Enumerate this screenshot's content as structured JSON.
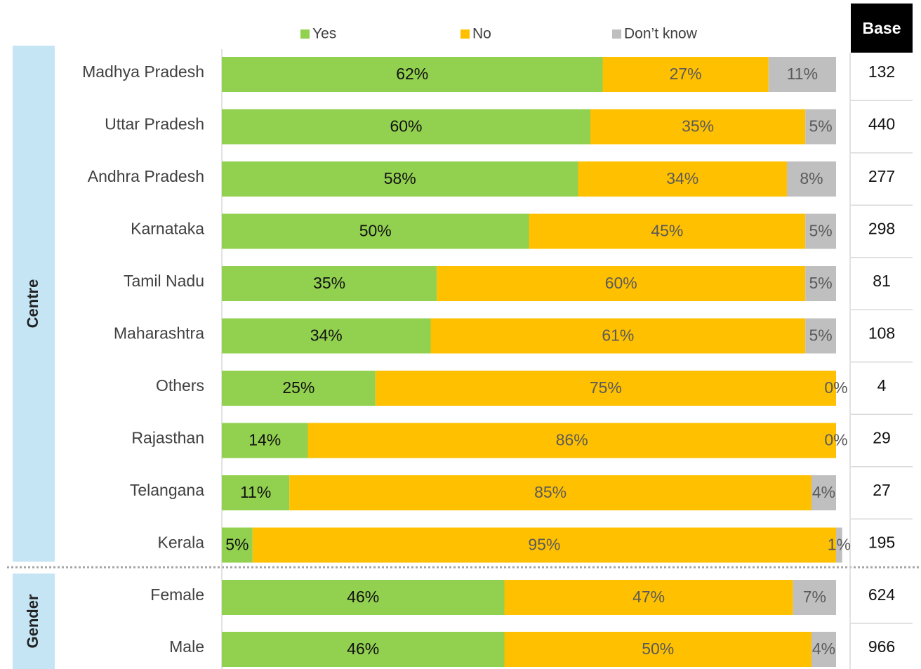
{
  "chart_data": {
    "type": "stacked_barh",
    "categories": [
      "Madhya Pradesh",
      "Uttar Pradesh",
      "Andhra Pradesh",
      "Karnataka",
      "Tamil Nadu",
      "Maharashtra",
      "Others",
      "Rajasthan",
      "Telangana",
      "Kerala",
      "Female",
      "Male"
    ],
    "series": [
      {
        "name": "Yes",
        "color": "#92d050",
        "values": [
          62,
          60,
          58,
          50,
          35,
          34,
          25,
          14,
          11,
          5,
          46,
          46
        ],
        "value_labels": [
          "62%",
          "60%",
          "58%",
          "50%",
          "35%",
          "34%",
          "25%",
          "14%",
          "11%",
          "5%",
          "46%",
          "46%"
        ]
      },
      {
        "name": "No",
        "color": "#ffc000",
        "values": [
          27,
          35,
          34,
          45,
          60,
          61,
          75,
          86,
          85,
          95,
          47,
          50
        ],
        "value_labels": [
          "27%",
          "35%",
          "34%",
          "45%",
          "60%",
          "61%",
          "75%",
          "86%",
          "85%",
          "95%",
          "47%",
          "50%"
        ]
      },
      {
        "name": "Don’t know",
        "color": "#bfbfbf",
        "values": [
          11,
          5,
          8,
          5,
          5,
          5,
          0,
          0,
          4,
          1,
          7,
          4
        ],
        "value_labels": [
          "11%",
          "5%",
          "8%",
          "5%",
          "5%",
          "5%",
          "0%",
          "0%",
          "4%",
          "1%",
          "7%",
          "4%"
        ]
      }
    ],
    "xlim": [
      0,
      100
    ],
    "groups": [
      "Centre",
      "Gender"
    ],
    "base": {
      "title": "Base",
      "values": [
        132,
        440,
        277,
        298,
        81,
        108,
        4,
        29,
        27,
        195,
        624,
        966
      ]
    }
  }
}
